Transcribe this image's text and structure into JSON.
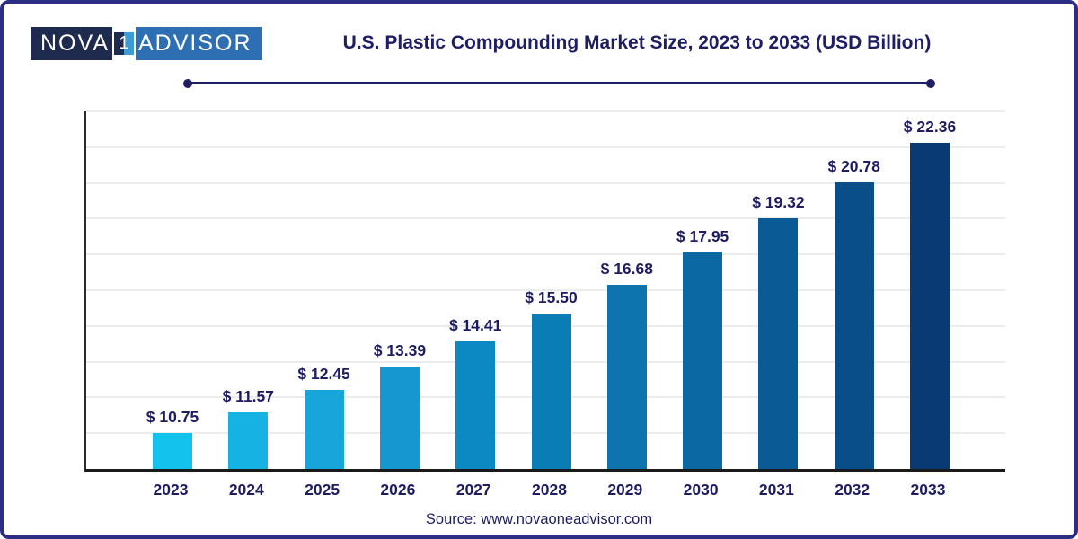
{
  "logo": {
    "left": "NOVA",
    "one": "1",
    "right": "ADVISOR"
  },
  "header": {
    "title": "U.S. Plastic Compounding Market Size, 2023 to 2033 (USD Billion)"
  },
  "footer": {
    "source": "Source: www.novaoneadvisor.com"
  },
  "colors": {
    "text_navy": "#1e1d62",
    "frame_border": "#2b2e83",
    "axis_line": "#1a1a1a",
    "gridline": "#ececec",
    "logo_dark": "#1e2b4e",
    "logo_blue": "#2e6fb4"
  },
  "chart_data": {
    "type": "bar",
    "title": "U.S. Plastic Compounding Market Size, 2023 to 2033 (USD Billion)",
    "categories": [
      "2023",
      "2024",
      "2025",
      "2026",
      "2027",
      "2028",
      "2029",
      "2030",
      "2031",
      "2032",
      "2033"
    ],
    "values": [
      10.75,
      11.57,
      12.45,
      13.39,
      14.41,
      15.5,
      16.68,
      17.95,
      19.32,
      20.78,
      22.36
    ],
    "value_prefix": "$ ",
    "xlabel": "",
    "ylabel": "",
    "ylim": [
      9.3,
      23.6
    ],
    "grid": true,
    "gridline_count": 10,
    "legend": false,
    "bar_colors": [
      "#13c3ee",
      "#16b2e4",
      "#17a5da",
      "#1697cf",
      "#0c89c2",
      "#0a7db7",
      "#0d74ae",
      "#0c68a2",
      "#0a5b95",
      "#094e88",
      "#0a3a74"
    ]
  }
}
